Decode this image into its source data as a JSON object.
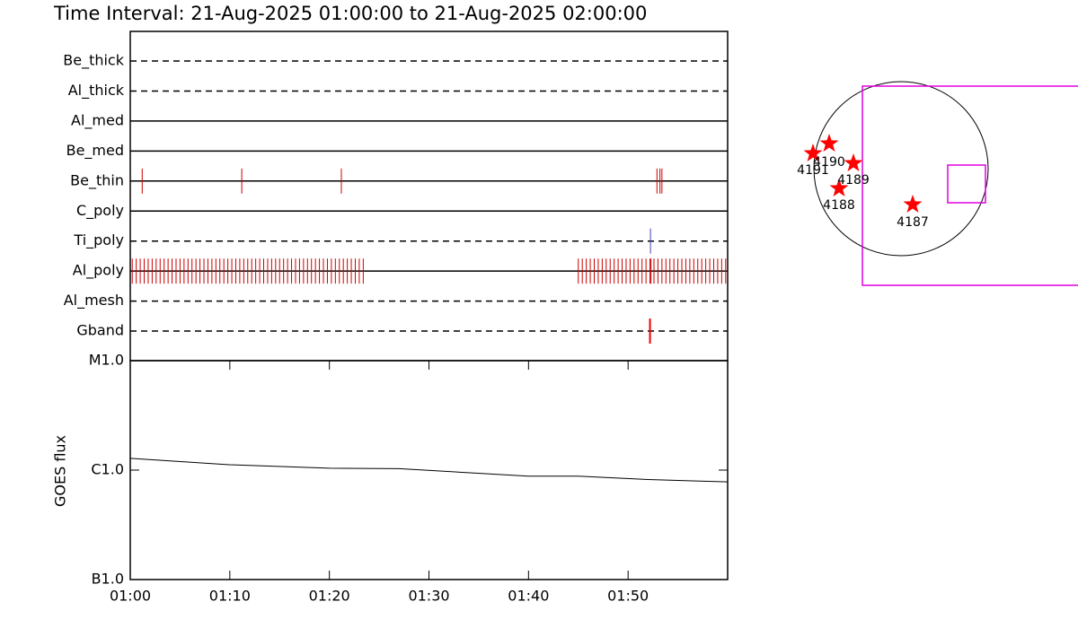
{
  "chart_data": [
    {
      "type": "timeline",
      "title": "Time Interval: 21-Aug-2025 01:00:00 to 21-Aug-2025 02:00:00",
      "xlim": [
        0,
        60
      ],
      "channels": [
        {
          "name": "Be_thick",
          "style": "dashed",
          "color": "#cc0000",
          "events": []
        },
        {
          "name": "Al_thick",
          "style": "dashed",
          "color": "#cc0000",
          "events": []
        },
        {
          "name": "Al_med",
          "style": "solid",
          "color": "#cc0000",
          "events": []
        },
        {
          "name": "Be_med",
          "style": "solid",
          "color": "#cc0000",
          "events": []
        },
        {
          "name": "Be_thin",
          "style": "solid",
          "color": "#cc0000",
          "events": [
            1.2,
            11.2,
            21.2,
            52.9,
            53.2,
            53.4
          ]
        },
        {
          "name": "C_poly",
          "style": "solid",
          "color": "#cc0000",
          "events": []
        },
        {
          "name": "Ti_poly",
          "style": "dashed",
          "color": "#4040b0",
          "events": [
            52.25
          ]
        },
        {
          "name": "Al_poly",
          "style": "solid",
          "color": "#cc0000",
          "events": [
            0.2,
            0.6,
            1,
            1.4,
            1.8,
            2.2,
            2.6,
            3,
            3.4,
            3.8,
            4.2,
            4.6,
            5,
            5.4,
            5.8,
            6.2,
            6.6,
            7,
            7.4,
            7.8,
            8.2,
            8.6,
            9,
            9.4,
            9.8,
            10.2,
            10.6,
            11,
            11.4,
            11.8,
            12.2,
            12.6,
            13,
            13.4,
            13.8,
            14.2,
            14.6,
            15,
            15.4,
            15.8,
            16.2,
            16.6,
            17,
            17.4,
            17.8,
            18.2,
            18.6,
            19,
            19.4,
            19.8,
            20.2,
            20.6,
            21,
            21.4,
            21.8,
            22.2,
            22.6,
            23,
            23.4,
            45,
            45.4,
            45.8,
            46.2,
            46.6,
            47,
            47.4,
            47.8,
            48.2,
            48.6,
            49,
            49.4,
            49.8,
            50.2,
            50.6,
            51,
            51.4,
            51.8,
            52.2,
            52.3,
            52.6,
            53,
            53.4,
            53.8,
            54.2,
            54.6,
            55,
            55.4,
            55.8,
            56.2,
            56.6,
            57,
            57.4,
            57.8,
            58.2,
            58.6,
            59,
            59.4,
            59.8
          ]
        },
        {
          "name": "Al_mesh",
          "style": "dashed",
          "color": "#cc0000",
          "events": []
        },
        {
          "name": "Gband",
          "style": "dashed",
          "color": "#ee0000",
          "events": [
            52.2
          ]
        }
      ]
    },
    {
      "type": "line",
      "ylabel": "GOES flux",
      "log": true,
      "color": "#000000",
      "x": [
        0,
        10,
        20,
        27,
        40,
        45,
        52,
        60
      ],
      "values": [
        1.28e-06,
        1.12e-06,
        1.04e-06,
        1.03e-06,
        8.8e-07,
        8.8e-07,
        8.2e-07,
        7.8e-07
      ],
      "xlim": [
        0,
        60
      ],
      "xticks": [
        {
          "value": 0,
          "label": "01:00"
        },
        {
          "value": 10,
          "label": "01:10"
        },
        {
          "value": 20,
          "label": "01:20"
        },
        {
          "value": 30,
          "label": "01:30"
        },
        {
          "value": 40,
          "label": "01:40"
        },
        {
          "value": 50,
          "label": "01:50"
        }
      ],
      "ylim": [
        1e-07,
        1e-05
      ],
      "yticks": [
        {
          "value": 1e-05,
          "label": "M1.0"
        },
        {
          "value": 1e-06,
          "label": "C1.0"
        },
        {
          "value": 1e-07,
          "label": "B1.0"
        }
      ]
    }
  ],
  "map": {
    "regions": [
      "4191",
      "4190",
      "4189",
      "4188",
      "4187"
    ]
  }
}
